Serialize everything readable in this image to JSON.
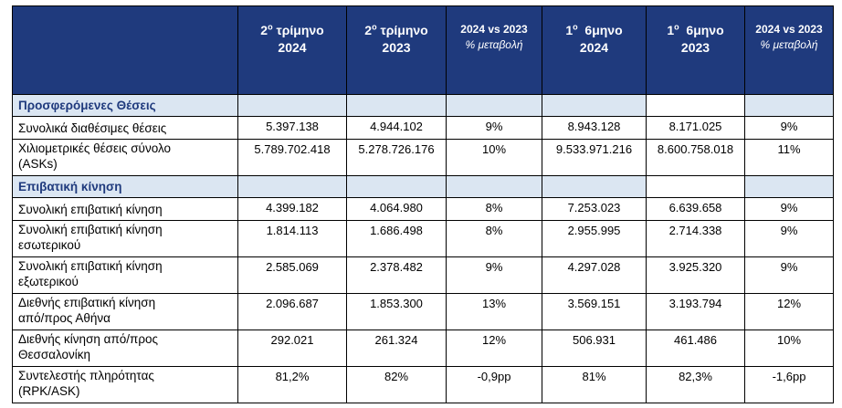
{
  "header": {
    "q2_2024": {
      "ord": "2",
      "sup": "ο",
      "word": "τρίμηνο",
      "year": "2024"
    },
    "q2_2023": {
      "ord": "2",
      "sup": "ο",
      "word": "τρίμηνο",
      "year": "2023"
    },
    "cmp1": {
      "title": "2024 vs 2023",
      "sub": "% μεταβολή"
    },
    "h1_2024": {
      "ord": "1",
      "sup": "ο",
      "word": "6μηνο",
      "year": "2024"
    },
    "h1_2023": {
      "ord": "1",
      "sup": "ο",
      "word": "6μηνο",
      "year": "2023"
    },
    "cmp2": {
      "title": "2024 vs 2023",
      "sub": "% μεταβολή"
    }
  },
  "sections": [
    {
      "title": "Προσφερόμενες Θέσεις",
      "rows": [
        {
          "label1": "Συνολικά διαθέσιμες θέσεις",
          "label2": "",
          "v": [
            "5.397.138",
            "4.944.102",
            "9%",
            "8.943.128",
            "8.171.025",
            "9%"
          ]
        },
        {
          "label1": "Χιλιομετρικές θέσεις σύνολο",
          "label2": "(ASKs)",
          "v": [
            "5.789.702.418",
            "5.278.726.176",
            "10%",
            "9.533.971.216",
            "8.600.758.018",
            "11%"
          ]
        }
      ]
    },
    {
      "title": "Επιβατική κίνηση",
      "rows": [
        {
          "label1": "Συνολική επιβατική κίνηση",
          "label2": "",
          "v": [
            "4.399.182",
            "4.064.980",
            "8%",
            "7.253.023",
            "6.639.658",
            "9%"
          ]
        },
        {
          "label1": "Συνολική επιβατική κίνηση",
          "label2": "εσωτερικού",
          "v": [
            "1.814.113",
            "1.686.498",
            "8%",
            "2.955.995",
            "2.714.338",
            "9%"
          ]
        },
        {
          "label1": "Συνολική επιβατική κίνηση",
          "label2": "εξωτερικού",
          "v": [
            "2.585.069",
            "2.378.482",
            "9%",
            "4.297.028",
            "3.925.320",
            "9%"
          ]
        },
        {
          "label1": "Διεθνής επιβατική κίνηση",
          "label2": "από/προς Αθήνα",
          "v": [
            "2.096.687",
            "1.853.300",
            "13%",
            "3.569.151",
            "3.193.794",
            "12%"
          ]
        },
        {
          "label1": "Διεθνής κίνηση  από/προς",
          "label2": "Θεσσαλονίκη",
          "v": [
            "292.021",
            "261.324",
            "12%",
            "506.931",
            "461.486",
            "10%"
          ]
        },
        {
          "label1": "Συντελεστής πληρότητας",
          "label2": "(RPK/ASK)",
          "v": [
            "81,2%",
            "82%",
            "-0,9pp",
            "81%",
            "82,3%",
            "-1,6pp"
          ]
        }
      ]
    }
  ]
}
